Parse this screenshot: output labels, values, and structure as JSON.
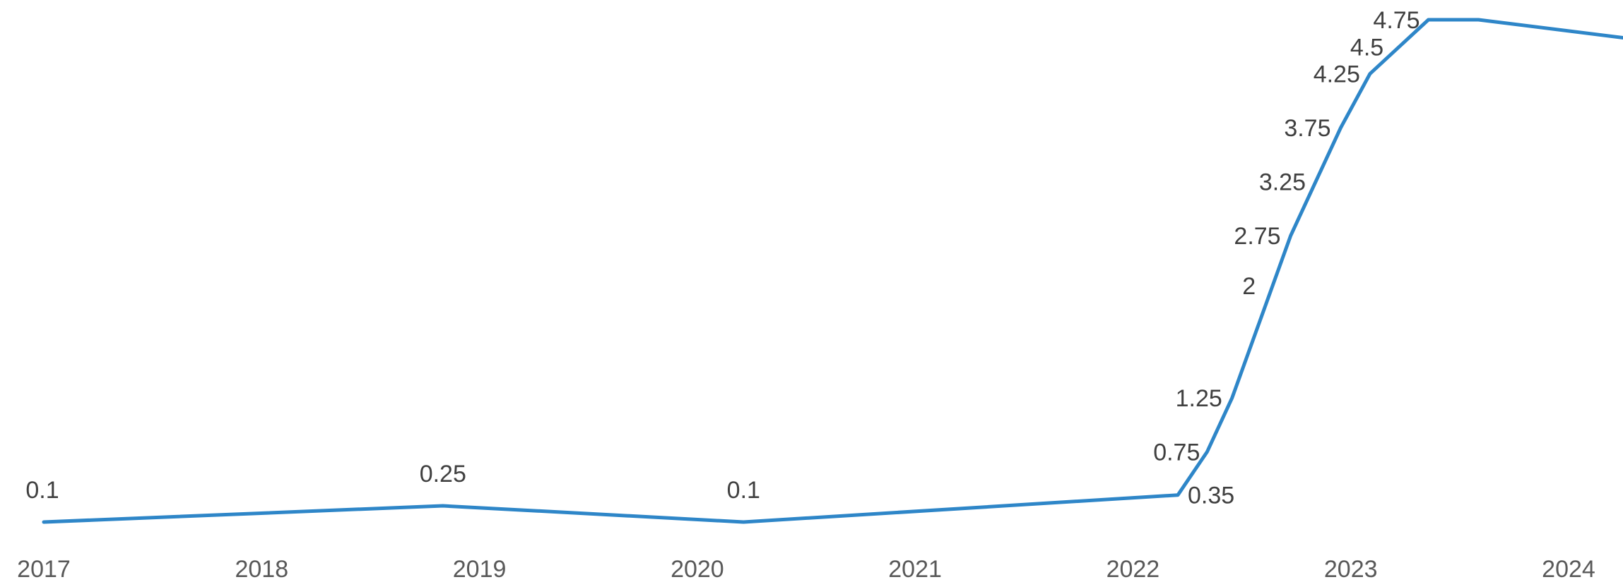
{
  "chart_data": {
    "type": "line",
    "title": "",
    "xlabel": "",
    "ylabel": "",
    "x_tick_labels": [
      "2017",
      "2018",
      "2019",
      "2020",
      "2021",
      "2022",
      "2023",
      "2024"
    ],
    "grid": false,
    "legend": "none",
    "colors": {
      "line": "#2e86c8",
      "text": "#404040",
      "ticks": "#595959"
    },
    "series": [
      {
        "x": [
          "2017-01-01",
          "2018-11-01",
          "2020-03-19",
          "2022-03-17",
          "2022-05-05",
          "2022-06-16",
          "2022-08-04",
          "2022-09-22",
          "2022-11-03",
          "2022-12-15",
          "2023-02-02",
          "2023-03-23",
          "2023-05-11",
          "2023-08-03",
          "2024-08-01"
        ],
        "values": [
          0.1,
          0.25,
          0.1,
          0.35,
          0.75,
          1.25,
          2,
          2.75,
          3.25,
          3.75,
          4.25,
          4.5,
          4.75,
          4.75,
          4.5
        ],
        "labels": [
          "0.1",
          "0.25",
          "0.1",
          "0.35",
          "0.75",
          "1.25",
          "2",
          "2.75",
          "3.25",
          "3.75",
          "4.25",
          "4.5",
          "4.75",
          "",
          "4.5"
        ]
      }
    ]
  }
}
